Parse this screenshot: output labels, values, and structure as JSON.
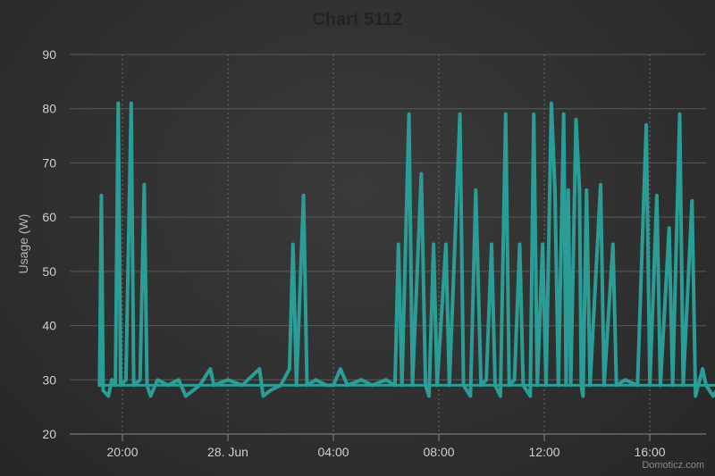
{
  "chart_data": {
    "type": "line",
    "title": "Chart 5112",
    "ylabel": "Usage (W)",
    "xlabel": "",
    "ylim": [
      20,
      90
    ],
    "y_ticks": [
      20,
      30,
      40,
      50,
      60,
      70,
      80,
      90
    ],
    "x_range_hours": [
      18.5,
      36.6
    ],
    "x_ticks": [
      {
        "hour": 20,
        "label": "20:00"
      },
      {
        "hour": 23,
        "label": "28. Jun"
      },
      {
        "hour": 26,
        "label": "04:00"
      },
      {
        "hour": 29,
        "label": "08:00"
      },
      {
        "hour": 32,
        "label": "12:00"
      },
      {
        "hour": 35,
        "label": "16:00"
      }
    ],
    "grid": true,
    "series": [
      {
        "color": "#2a9d96",
        "baseline": 29,
        "points": [
          [
            19.35,
            29
          ],
          [
            19.4,
            64
          ],
          [
            19.45,
            28
          ],
          [
            19.6,
            27
          ],
          [
            19.7,
            30
          ],
          [
            19.8,
            29
          ],
          [
            19.88,
            81
          ],
          [
            19.95,
            29
          ],
          [
            20.1,
            30
          ],
          [
            20.25,
            81
          ],
          [
            20.32,
            29
          ],
          [
            20.5,
            30
          ],
          [
            20.62,
            66
          ],
          [
            20.7,
            29
          ],
          [
            20.8,
            27
          ],
          [
            21.0,
            30
          ],
          [
            21.3,
            29
          ],
          [
            21.6,
            30
          ],
          [
            21.8,
            27
          ],
          [
            22.2,
            29
          ],
          [
            22.5,
            32
          ],
          [
            22.6,
            29
          ],
          [
            23.0,
            30
          ],
          [
            23.4,
            29
          ],
          [
            23.9,
            32
          ],
          [
            24.0,
            27
          ],
          [
            24.2,
            28
          ],
          [
            24.5,
            29
          ],
          [
            24.75,
            32
          ],
          [
            24.85,
            55
          ],
          [
            24.95,
            29
          ],
          [
            25.15,
            64
          ],
          [
            25.25,
            29
          ],
          [
            25.5,
            30
          ],
          [
            25.8,
            29
          ],
          [
            26.0,
            29
          ],
          [
            26.2,
            32
          ],
          [
            26.4,
            29
          ],
          [
            26.8,
            30
          ],
          [
            27.1,
            29
          ],
          [
            27.5,
            30
          ],
          [
            27.75,
            29
          ],
          [
            27.85,
            55
          ],
          [
            27.95,
            29
          ],
          [
            28.15,
            79
          ],
          [
            28.25,
            29
          ],
          [
            28.5,
            68
          ],
          [
            28.62,
            29
          ],
          [
            28.72,
            27
          ],
          [
            28.85,
            55
          ],
          [
            28.95,
            29
          ],
          [
            29.2,
            55
          ],
          [
            29.3,
            29
          ],
          [
            29.6,
            79
          ],
          [
            29.7,
            29
          ],
          [
            29.9,
            27
          ],
          [
            30.05,
            65
          ],
          [
            30.2,
            29
          ],
          [
            30.35,
            30
          ],
          [
            30.5,
            55
          ],
          [
            30.6,
            29
          ],
          [
            30.75,
            27
          ],
          [
            30.9,
            79
          ],
          [
            31.0,
            29
          ],
          [
            31.15,
            30
          ],
          [
            31.3,
            55
          ],
          [
            31.4,
            29
          ],
          [
            31.6,
            27
          ],
          [
            31.7,
            79
          ],
          [
            31.8,
            29
          ],
          [
            31.95,
            55
          ],
          [
            32.05,
            29
          ],
          [
            32.2,
            81
          ],
          [
            32.3,
            65
          ],
          [
            32.4,
            29
          ],
          [
            32.55,
            79
          ],
          [
            32.62,
            29
          ],
          [
            32.68,
            65
          ],
          [
            32.75,
            29
          ],
          [
            32.9,
            78
          ],
          [
            33.0,
            65
          ],
          [
            33.05,
            29
          ],
          [
            33.1,
            27
          ],
          [
            33.2,
            65
          ],
          [
            33.3,
            29
          ],
          [
            33.6,
            66
          ],
          [
            33.7,
            29
          ],
          [
            33.95,
            55
          ],
          [
            34.05,
            29
          ],
          [
            34.3,
            30
          ],
          [
            34.65,
            29
          ],
          [
            34.9,
            77
          ],
          [
            35.0,
            29
          ],
          [
            35.2,
            64
          ],
          [
            35.3,
            29
          ],
          [
            35.55,
            58
          ],
          [
            35.65,
            29
          ],
          [
            35.85,
            79
          ],
          [
            35.95,
            29
          ],
          [
            36.2,
            63
          ],
          [
            36.3,
            27
          ],
          [
            36.5,
            32
          ],
          [
            36.6,
            29
          ],
          [
            36.8,
            27
          ],
          [
            37.0,
            29
          ],
          [
            37.3,
            27
          ],
          [
            37.6,
            29
          ],
          [
            37.7,
            27
          ]
        ]
      }
    ]
  },
  "credit": "Domoticz.com"
}
